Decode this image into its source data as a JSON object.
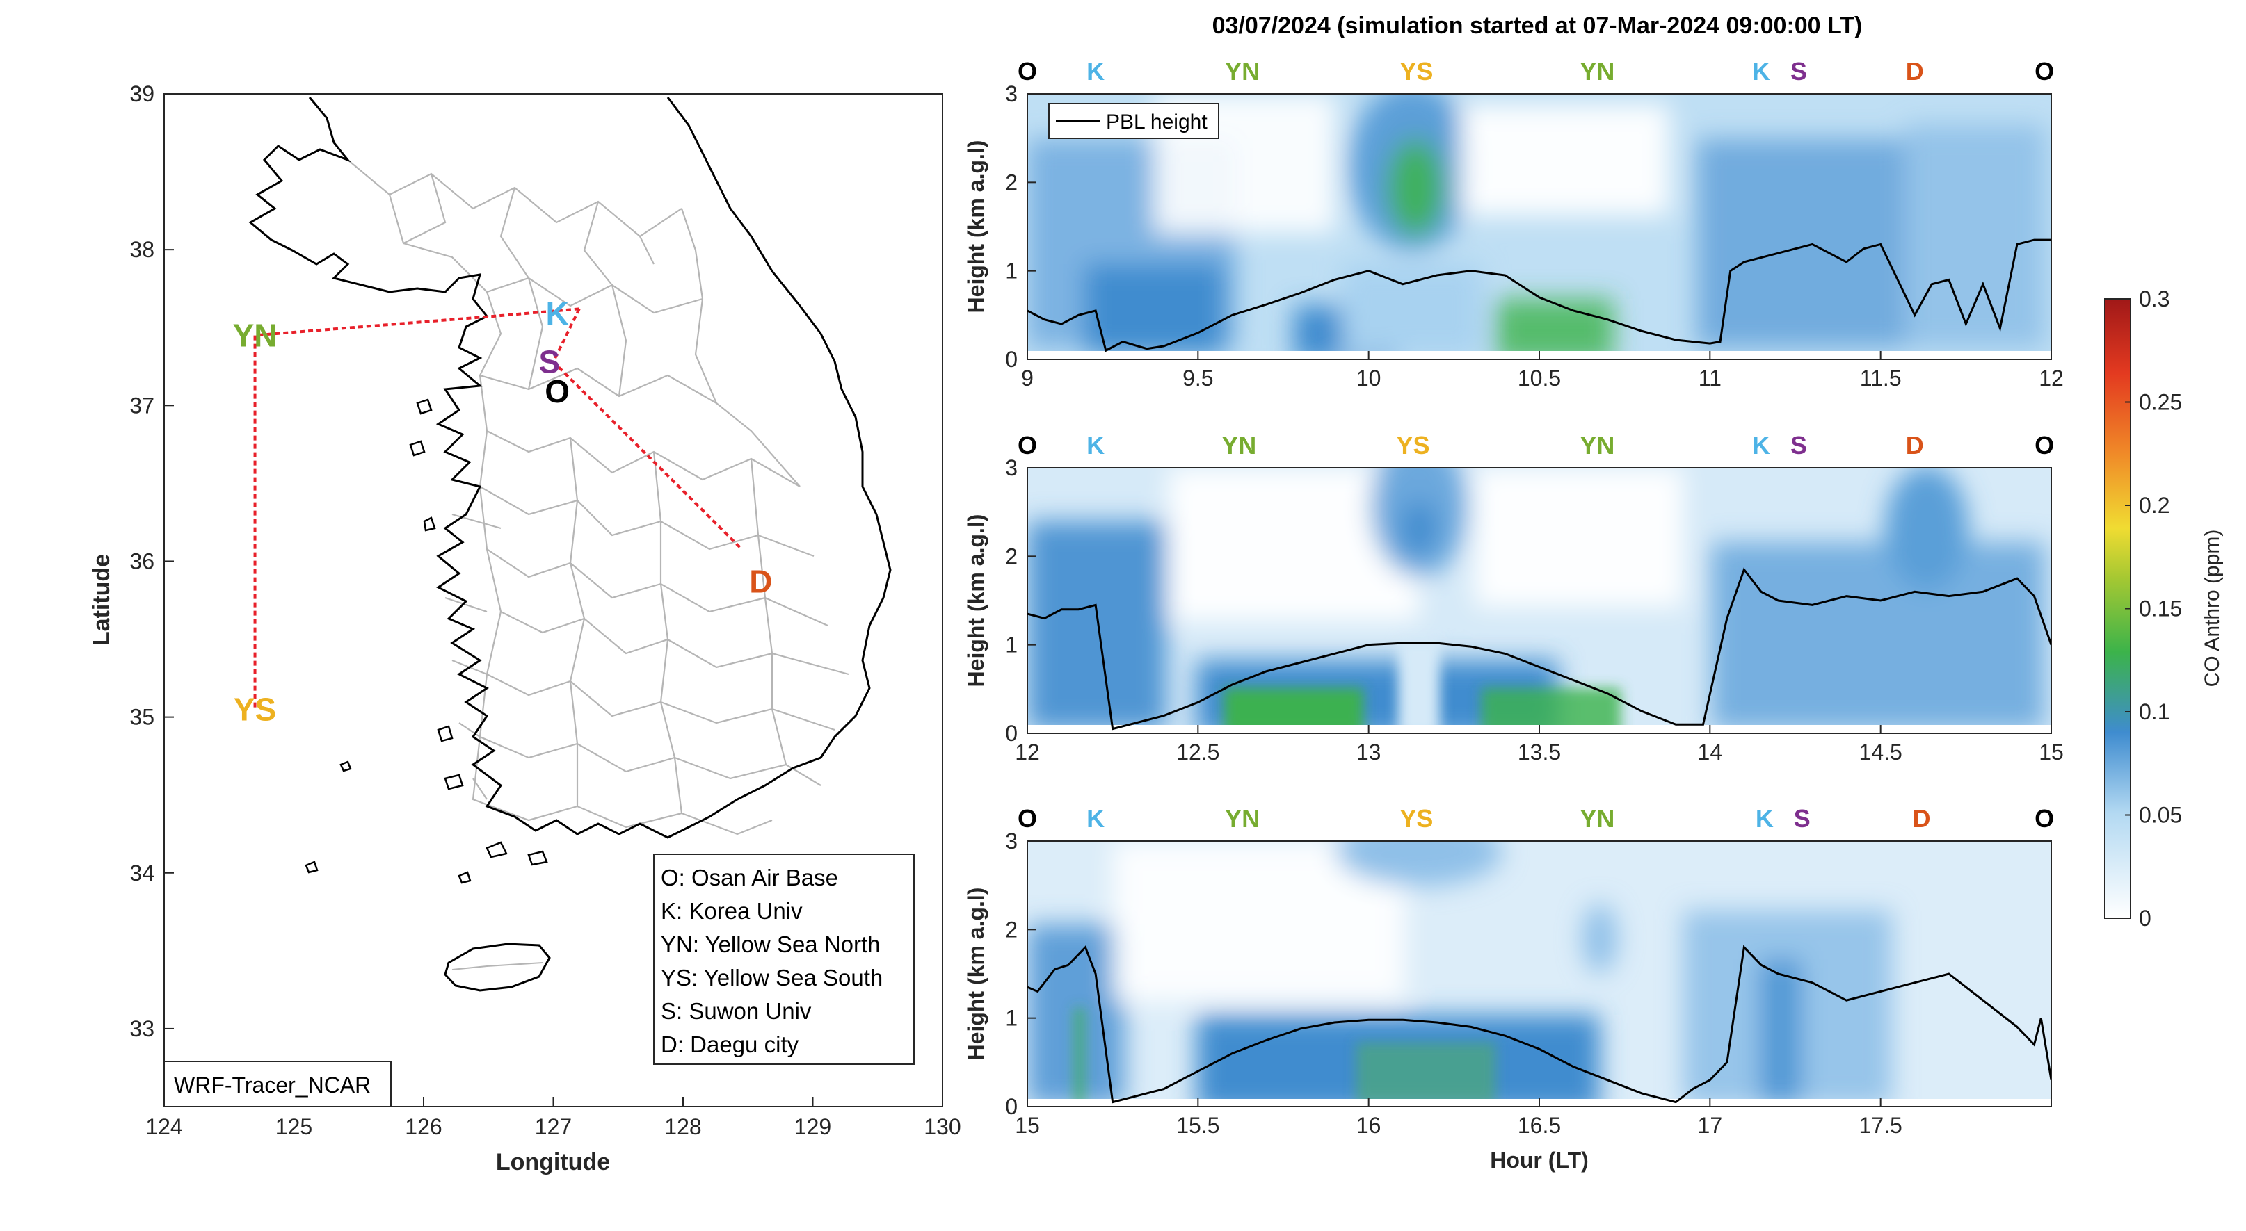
{
  "figure": {
    "colors": {
      "O": "#000000",
      "K": "#4db3e6",
      "YN": "#77ac30",
      "YS": "#edb120",
      "S": "#7e2f8e",
      "D": "#d95319",
      "track": "#e8202a",
      "pbl": "#000000"
    }
  },
  "map": {
    "xlabel": "Longitude",
    "ylabel": "Latitude",
    "xlim": [
      124,
      130
    ],
    "ylim": [
      32.5,
      39
    ],
    "xticks": [
      "124",
      "125",
      "126",
      "127",
      "128",
      "129",
      "130"
    ],
    "yticks": [
      "33",
      "34",
      "35",
      "36",
      "37",
      "38",
      "39"
    ],
    "model_label": "WRF-Tracer_NCAR",
    "legend": [
      "O: Osan Air Base",
      "K: Korea Univ",
      "YN: Yellow Sea North",
      "YS: Yellow Sea South",
      "S: Suwon Univ",
      "D: Daegu city"
    ],
    "sites": [
      {
        "key": "YN",
        "label": "YN",
        "lon": 124.7,
        "lat": 37.45
      },
      {
        "key": "YS",
        "label": "YS",
        "lon": 124.7,
        "lat": 35.05
      },
      {
        "key": "K",
        "label": "K",
        "lon": 127.03,
        "lat": 37.59
      },
      {
        "key": "S",
        "label": "S",
        "lon": 126.97,
        "lat": 37.28
      },
      {
        "key": "O",
        "label": "O",
        "lon": 127.03,
        "lat": 37.09
      },
      {
        "key": "D",
        "label": "D",
        "lon": 128.6,
        "lat": 35.87
      }
    ],
    "track": [
      [
        127.2,
        37.62
      ],
      [
        126.5,
        37.57
      ],
      [
        124.7,
        37.45
      ],
      [
        124.7,
        35.05
      ]
    ],
    "track2": [
      [
        127.2,
        37.62
      ],
      [
        127.0,
        37.28
      ],
      [
        128.45,
        36.08
      ]
    ]
  },
  "chart_data": [
    {
      "type": "heatmap",
      "title": "03/07/2024 (simulation started at 07-Mar-2024 09:00:00 LT)",
      "xlabel": "",
      "ylabel": "Height (km a.g.l)",
      "xlim": [
        9,
        12
      ],
      "ylim": [
        0,
        3
      ],
      "xticks": [
        "9",
        "9.5",
        "10",
        "10.5",
        "11",
        "11.5",
        "12"
      ],
      "yticks": [
        "0",
        "1",
        "2",
        "3"
      ],
      "legend": [
        "PBL height"
      ],
      "site_labels": [
        {
          "key": "O",
          "label": "O",
          "x": 9.0
        },
        {
          "key": "K",
          "label": "K",
          "x": 9.2
        },
        {
          "key": "YN",
          "label": "YN",
          "x": 9.63
        },
        {
          "key": "YS",
          "label": "YS",
          "x": 10.14
        },
        {
          "key": "YN",
          "label": "YN",
          "x": 10.67
        },
        {
          "key": "K",
          "label": "K",
          "x": 11.15
        },
        {
          "key": "S",
          "label": "S",
          "x": 11.26
        },
        {
          "key": "D",
          "label": "D",
          "x": 11.6
        },
        {
          "key": "O",
          "label": "O",
          "x": 11.98
        }
      ],
      "pbl": {
        "name": "PBL height",
        "x": [
          9.0,
          9.05,
          9.1,
          9.15,
          9.2,
          9.23,
          9.28,
          9.35,
          9.4,
          9.5,
          9.6,
          9.7,
          9.8,
          9.9,
          10.0,
          10.1,
          10.2,
          10.3,
          10.4,
          10.5,
          10.6,
          10.7,
          10.8,
          10.9,
          11.0,
          11.03,
          11.06,
          11.1,
          11.15,
          11.2,
          11.25,
          11.3,
          11.35,
          11.4,
          11.45,
          11.5,
          11.55,
          11.6,
          11.65,
          11.7,
          11.75,
          11.8,
          11.85,
          11.9,
          11.95,
          12.0
        ],
        "y": [
          0.55,
          0.45,
          0.4,
          0.5,
          0.55,
          0.1,
          0.2,
          0.12,
          0.15,
          0.3,
          0.5,
          0.62,
          0.75,
          0.9,
          1.0,
          0.85,
          0.95,
          1.0,
          0.95,
          0.7,
          0.55,
          0.45,
          0.32,
          0.22,
          0.18,
          0.2,
          1.0,
          1.1,
          1.15,
          1.2,
          1.25,
          1.3,
          1.2,
          1.1,
          1.25,
          1.3,
          0.9,
          0.5,
          0.85,
          0.9,
          0.4,
          0.85,
          0.35,
          1.3,
          1.35,
          1.35
        ]
      },
      "colorbar": {
        "label": "CO Anthro (ppm)",
        "ticks": [
          "0",
          "0.05",
          "0.1",
          "0.15",
          "0.2",
          "0.25",
          "0.3"
        ],
        "range": [
          0,
          0.3
        ]
      }
    },
    {
      "type": "heatmap",
      "xlim": [
        12,
        15
      ],
      "ylim": [
        0,
        3
      ],
      "ylabel": "Height (km a.g.l)",
      "xticks": [
        "12",
        "12.5",
        "13",
        "13.5",
        "14",
        "14.5",
        "15"
      ],
      "yticks": [
        "0",
        "1",
        "2",
        "3"
      ],
      "site_labels": [
        {
          "key": "O",
          "label": "O",
          "x": 12.0
        },
        {
          "key": "K",
          "label": "K",
          "x": 12.2
        },
        {
          "key": "YN",
          "label": "YN",
          "x": 12.62
        },
        {
          "key": "YS",
          "label": "YS",
          "x": 13.13
        },
        {
          "key": "YN",
          "label": "YN",
          "x": 13.67
        },
        {
          "key": "K",
          "label": "K",
          "x": 14.15
        },
        {
          "key": "S",
          "label": "S",
          "x": 14.26
        },
        {
          "key": "D",
          "label": "D",
          "x": 14.6
        },
        {
          "key": "O",
          "label": "O",
          "x": 14.98
        }
      ],
      "pbl": {
        "name": "PBL height",
        "x": [
          12.0,
          12.05,
          12.1,
          12.15,
          12.2,
          12.25,
          12.3,
          12.4,
          12.5,
          12.6,
          12.7,
          12.8,
          12.9,
          13.0,
          13.1,
          13.2,
          13.3,
          13.4,
          13.5,
          13.6,
          13.7,
          13.8,
          13.9,
          13.98,
          14.05,
          14.1,
          14.15,
          14.2,
          14.3,
          14.4,
          14.5,
          14.6,
          14.7,
          14.8,
          14.9,
          14.95,
          15.0
        ],
        "y": [
          1.35,
          1.3,
          1.4,
          1.4,
          1.45,
          0.05,
          0.1,
          0.2,
          0.35,
          0.55,
          0.7,
          0.8,
          0.9,
          1.0,
          1.02,
          1.02,
          0.98,
          0.9,
          0.75,
          0.6,
          0.45,
          0.25,
          0.1,
          0.1,
          1.3,
          1.85,
          1.6,
          1.5,
          1.45,
          1.55,
          1.5,
          1.6,
          1.55,
          1.6,
          1.75,
          1.55,
          1.0
        ]
      }
    },
    {
      "type": "heatmap",
      "xlim": [
        15,
        18
      ],
      "ylim": [
        0,
        3
      ],
      "xlabel": "Hour (LT)",
      "ylabel": "Height (km a.g.l)",
      "xticks": [
        "15",
        "15.5",
        "16",
        "16.5",
        "17",
        "17.5"
      ],
      "yticks": [
        "0",
        "1",
        "2",
        "3"
      ],
      "site_labels": [
        {
          "key": "O",
          "label": "O",
          "x": 15.0
        },
        {
          "key": "K",
          "label": "K",
          "x": 15.2
        },
        {
          "key": "YN",
          "label": "YN",
          "x": 15.63
        },
        {
          "key": "YS",
          "label": "YS",
          "x": 16.14
        },
        {
          "key": "YN",
          "label": "YN",
          "x": 16.67
        },
        {
          "key": "K",
          "label": "K",
          "x": 17.16
        },
        {
          "key": "S",
          "label": "S",
          "x": 17.27
        },
        {
          "key": "D",
          "label": "D",
          "x": 17.62
        },
        {
          "key": "O",
          "label": "O",
          "x": 17.98
        }
      ],
      "pbl": {
        "name": "PBL height",
        "x": [
          15.0,
          15.03,
          15.08,
          15.12,
          15.17,
          15.2,
          15.25,
          15.3,
          15.4,
          15.5,
          15.6,
          15.7,
          15.8,
          15.9,
          16.0,
          16.1,
          16.2,
          16.3,
          16.4,
          16.5,
          16.6,
          16.7,
          16.8,
          16.9,
          16.95,
          17.0,
          17.05,
          17.1,
          17.15,
          17.2,
          17.3,
          17.4,
          17.5,
          17.6,
          17.7,
          17.8,
          17.9,
          17.95,
          17.97,
          18.0
        ],
        "y": [
          1.35,
          1.3,
          1.55,
          1.6,
          1.8,
          1.5,
          0.05,
          0.1,
          0.2,
          0.4,
          0.6,
          0.75,
          0.88,
          0.95,
          0.98,
          0.98,
          0.95,
          0.9,
          0.8,
          0.65,
          0.45,
          0.3,
          0.15,
          0.05,
          0.2,
          0.3,
          0.5,
          1.8,
          1.6,
          1.5,
          1.4,
          1.2,
          1.3,
          1.4,
          1.5,
          1.2,
          0.9,
          0.7,
          1.0,
          0.3
        ]
      }
    }
  ]
}
